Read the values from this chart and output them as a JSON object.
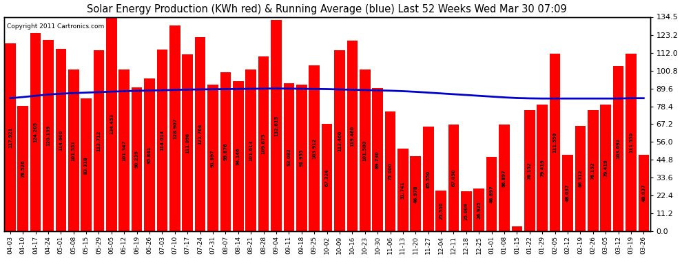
{
  "title": "Solar Energy Production (KWh red) & Running Average (blue) Last 52 Weeks Wed Mar 30 07:09",
  "copyright": "Copyright 2011 Cartronics.com",
  "bar_color": "#ff0000",
  "line_color": "#0000cc",
  "background_color": "#ffffff",
  "grid_color": "#aaaaaa",
  "ylim": [
    0,
    134.5
  ],
  "yticks": [
    0.0,
    11.2,
    22.4,
    33.6,
    44.8,
    56.0,
    67.2,
    78.4,
    89.6,
    100.8,
    112.0,
    123.2,
    134.5
  ],
  "categories": [
    "04-03",
    "04-10",
    "04-17",
    "04-24",
    "05-01",
    "05-08",
    "05-15",
    "05-29",
    "06-05",
    "06-12",
    "06-19",
    "06-26",
    "07-03",
    "07-10",
    "07-17",
    "07-24",
    "07-31",
    "08-07",
    "08-14",
    "08-21",
    "08-28",
    "09-04",
    "09-11",
    "09-18",
    "09-25",
    "10-02",
    "10-09",
    "10-16",
    "10-23",
    "10-30",
    "11-06",
    "11-13",
    "11-20",
    "11-27",
    "12-04",
    "12-11",
    "12-18",
    "12-25",
    "01-01",
    "01-08",
    "01-15",
    "01-22",
    "01-29",
    "02-05",
    "02-12",
    "02-19",
    "02-26",
    "03-05",
    "03-12",
    "03-19",
    "03-26"
  ],
  "values": [
    117.921,
    78.526,
    124.205,
    120.139,
    114.6,
    101.551,
    83.318,
    113.712,
    134.453,
    101.347,
    90.239,
    95.841,
    114.014,
    128.907,
    111.096,
    121.764,
    91.897,
    99.876,
    94.146,
    101.613,
    109.875,
    132.615,
    93.082,
    91.955,
    103.912,
    67.324,
    113.46,
    119.46,
    101.5,
    89.73,
    75.0,
    51.741,
    46.978,
    65.55,
    25.55,
    67.05,
    25.009,
    26.925,
    46.897,
    66.897,
    3.152,
    76.152,
    79.419,
    111.55,
    48.037,
    66.312,
    76.152,
    79.419,
    103.692,
    111.55,
    48.037
  ],
  "running_avg": [
    83.5,
    84.2,
    85.0,
    85.8,
    86.3,
    86.7,
    87.0,
    87.3,
    87.6,
    87.9,
    88.1,
    88.3,
    88.5,
    88.7,
    88.9,
    89.0,
    89.1,
    89.2,
    89.3,
    89.4,
    89.5,
    89.6,
    89.5,
    89.4,
    89.3,
    89.2,
    89.0,
    88.8,
    88.6,
    88.4,
    88.2,
    87.9,
    87.5,
    87.0,
    86.5,
    86.0,
    85.5,
    85.0,
    84.5,
    84.0,
    83.6,
    83.4,
    83.3,
    83.3,
    83.3,
    83.3,
    83.3,
    83.3,
    83.3,
    83.5,
    83.5
  ]
}
